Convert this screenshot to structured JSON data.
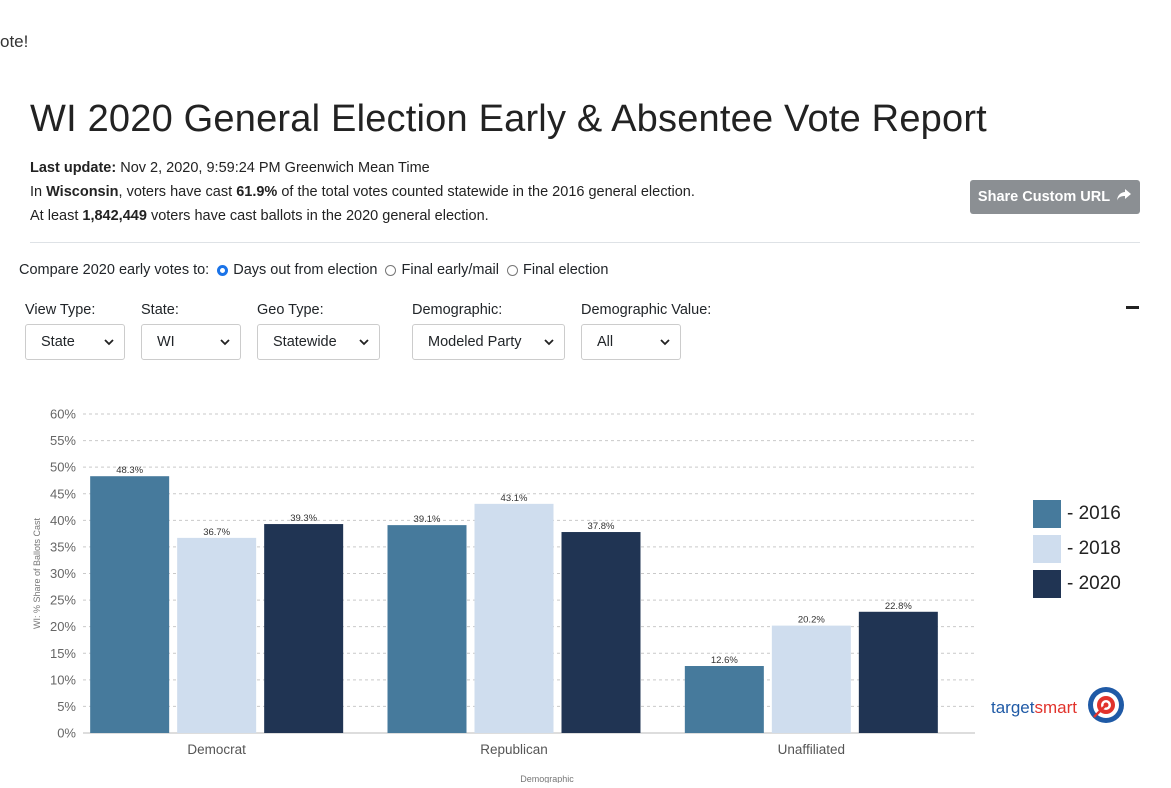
{
  "header": {
    "top_fragment": "ote!",
    "title": "WI 2020 General Election Early & Absentee Vote Report",
    "last_update_label": "Last update:",
    "last_update_value": "Nov 2, 2020, 9:59:24 PM Greenwich Mean Time",
    "line2_pre": "In",
    "line2_state": "Wisconsin",
    "line2_mid": ", voters have cast",
    "line2_pct": "61.9%",
    "line2_post": "of the total votes counted statewide in the 2016 general election.",
    "line3_pre": "At least",
    "line3_count": "1,842,449",
    "line3_post": "voters have cast ballots in the 2020 general election.",
    "share_label": "Share Custom URL"
  },
  "compare": {
    "label": "Compare 2020 early votes to:",
    "options": [
      "Days out from election",
      "Final early/mail",
      "Final election"
    ],
    "selected": "Days out from election"
  },
  "filters": {
    "view_type": {
      "label": "View Type:",
      "value": "State"
    },
    "state": {
      "label": "State:",
      "value": "WI"
    },
    "geo_type": {
      "label": "Geo Type:",
      "value": "Statewide"
    },
    "demographic": {
      "label": "Demographic:",
      "value": "Modeled Party"
    },
    "demographic_value": {
      "label": "Demographic Value:",
      "value": "All"
    }
  },
  "chart_data": {
    "type": "bar",
    "categories": [
      "Democrat",
      "Republican",
      "Unaffiliated"
    ],
    "series": [
      {
        "name": "2016",
        "values": [
          48.3,
          39.1,
          12.6
        ],
        "color": "#467a9c"
      },
      {
        "name": "2018",
        "values": [
          36.7,
          43.1,
          20.2
        ],
        "color": "#cfddee"
      },
      {
        "name": "2020",
        "values": [
          39.3,
          37.8,
          22.8
        ],
        "color": "#203453"
      }
    ],
    "data_labels": [
      [
        "48.3%",
        "39.1%",
        "12.6%"
      ],
      [
        "36.7%",
        "43.1%",
        "20.2%"
      ],
      [
        "39.3%",
        "37.8%",
        "22.8%"
      ]
    ],
    "yticks": [
      "0%",
      "5%",
      "10%",
      "15%",
      "20%",
      "25%",
      "30%",
      "35%",
      "40%",
      "45%",
      "50%",
      "55%",
      "60%"
    ],
    "ylim": [
      0,
      60
    ],
    "ylabel": "WI: % Share of Ballots Cast",
    "xlabel": "Demographic",
    "grid": true
  },
  "legend": {
    "items": [
      {
        "label": "- 2016",
        "color": "#467a9c"
      },
      {
        "label": "- 2018",
        "color": "#cfddee"
      },
      {
        "label": "- 2020",
        "color": "#203453"
      }
    ]
  },
  "branding": {
    "word_a": "target",
    "word_b": "smart",
    "color_a": "#1f5aa6",
    "color_b": "#e1332c"
  }
}
